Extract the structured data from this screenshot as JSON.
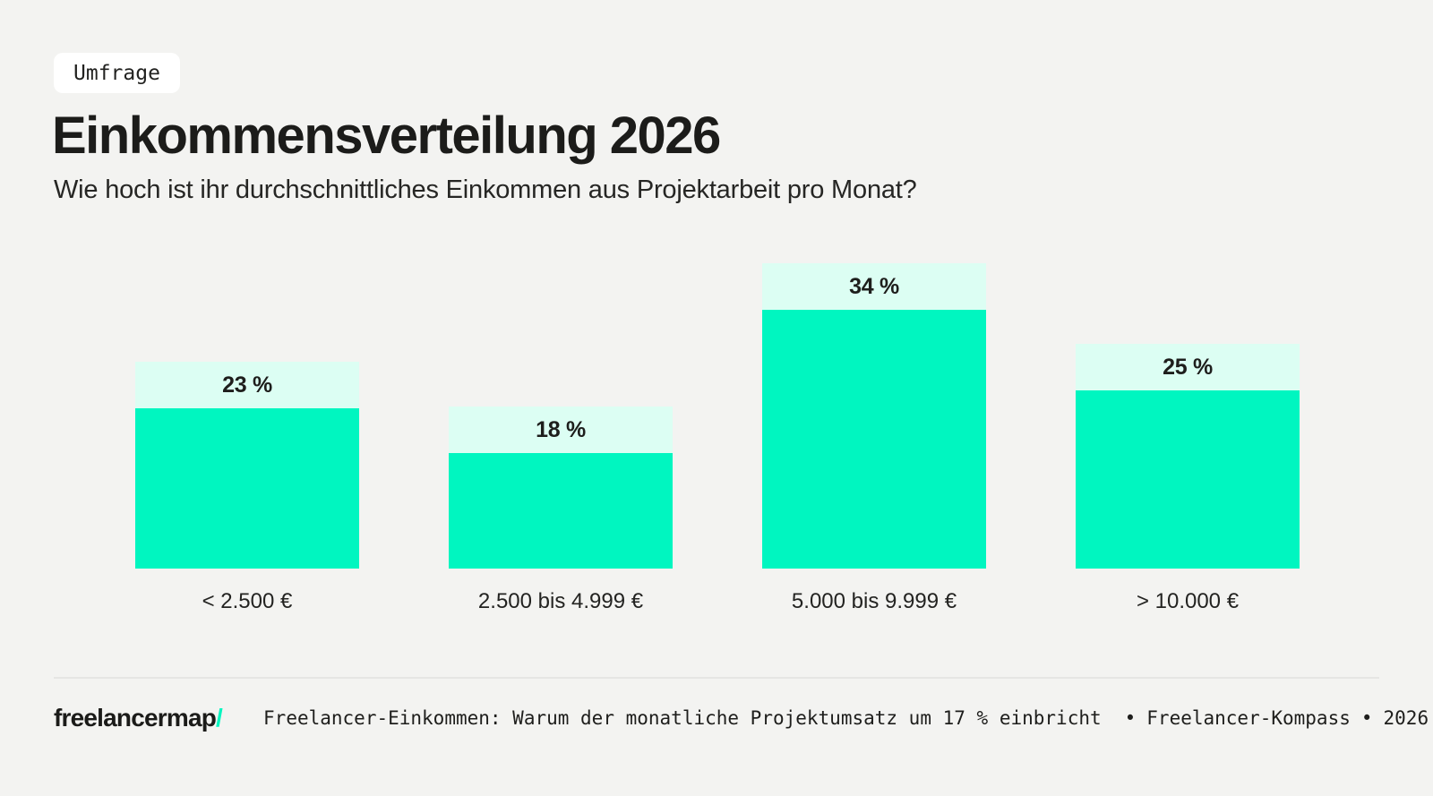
{
  "badge": {
    "label": "Umfrage"
  },
  "header": {
    "title": "Einkommensverteilung 2026",
    "subtitle": "Wie hoch ist ihr durchschnittliches Einkommen aus Projektarbeit pro Monat?"
  },
  "chart_data": {
    "type": "bar",
    "categories": [
      "< 2.500 €",
      "2.500 bis 4.999 €",
      "5.000 bis 9.999 €",
      "> 10.000 €"
    ],
    "values": [
      23,
      18,
      34,
      25
    ],
    "value_labels": [
      "23 %",
      "18 %",
      "34 %",
      "25 %"
    ],
    "unit": "%",
    "ylim": [
      0,
      34
    ],
    "grid": false,
    "legend": false,
    "bar_color": "#00F6C0",
    "value_strip_color": "#DCFEF3",
    "value_text_color": "#1E1E1C"
  },
  "footer": {
    "logo_text": "freelancermap",
    "logo_slash": "/",
    "source_article": "Freelancer-Einkommen: Warum der monatliche Projektumsatz um 17 % einbricht",
    "bullet1": "•",
    "source_publication": "Freelancer-Kompass",
    "bullet2": "•",
    "source_year": "2026"
  },
  "colors": {
    "background": "#F3F3F1",
    "accent_teal": "#00F6C0",
    "mint": "#DCFEF3",
    "text_dark": "#1D1D1B",
    "divider": "#E6E6E4"
  }
}
